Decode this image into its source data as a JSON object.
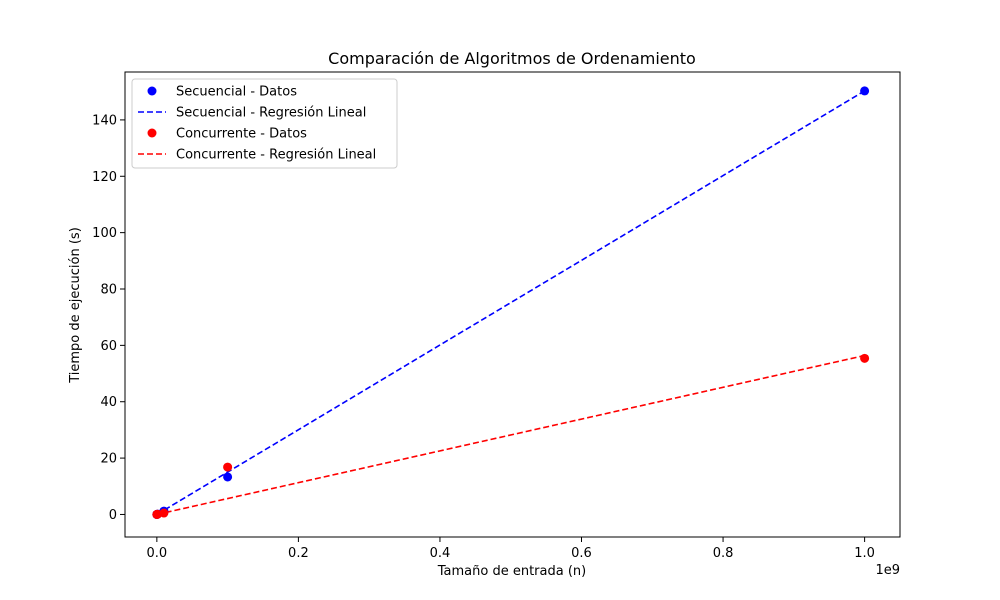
{
  "chart_data": {
    "type": "scatter",
    "title": "Comparación de Algoritmos de Ordenamiento",
    "xlabel": "Tamaño de entrada (n)",
    "ylabel": "Tiempo de ejecución (s)",
    "x_scale_label": "1e9",
    "xlim": [
      -0.045,
      1.05
    ],
    "ylim": [
      -8,
      157
    ],
    "x_ticks": [
      0.0,
      0.2,
      0.4,
      0.6,
      0.8,
      1.0
    ],
    "x_tick_labels": [
      "0.0",
      "0.2",
      "0.4",
      "0.6",
      "0.8",
      "1.0"
    ],
    "y_ticks": [
      0,
      20,
      40,
      60,
      80,
      100,
      120,
      140
    ],
    "y_tick_labels": [
      "0",
      "20",
      "40",
      "60",
      "80",
      "100",
      "120",
      "140"
    ],
    "grid": false,
    "legend_position": "top-left",
    "series": [
      {
        "name": "Secuencial - Datos",
        "kind": "scatter",
        "color": "#0000ff",
        "x": [
          1e-05,
          0.0001,
          0.001,
          0.01,
          0.1,
          1.0
        ],
        "y": [
          0.0,
          0.01,
          0.12,
          1.2,
          13.3,
          150.3
        ]
      },
      {
        "name": "Secuencial - Regresión Lineal",
        "kind": "line",
        "style": "dashed",
        "color": "#0000ff",
        "x": [
          1e-05,
          1.0
        ],
        "y": [
          0.0,
          150.3
        ]
      },
      {
        "name": "Concurrente - Datos",
        "kind": "scatter",
        "color": "#ff0000",
        "x": [
          1e-05,
          0.0001,
          0.001,
          0.01,
          0.1,
          1.0
        ],
        "y": [
          0.0,
          0.01,
          0.08,
          0.5,
          16.8,
          55.4
        ]
      },
      {
        "name": "Concurrente - Regresión Lineal",
        "kind": "line",
        "style": "dashed",
        "color": "#ff0000",
        "x": [
          1e-05,
          1.0
        ],
        "y": [
          0.0,
          56.4
        ]
      }
    ]
  }
}
